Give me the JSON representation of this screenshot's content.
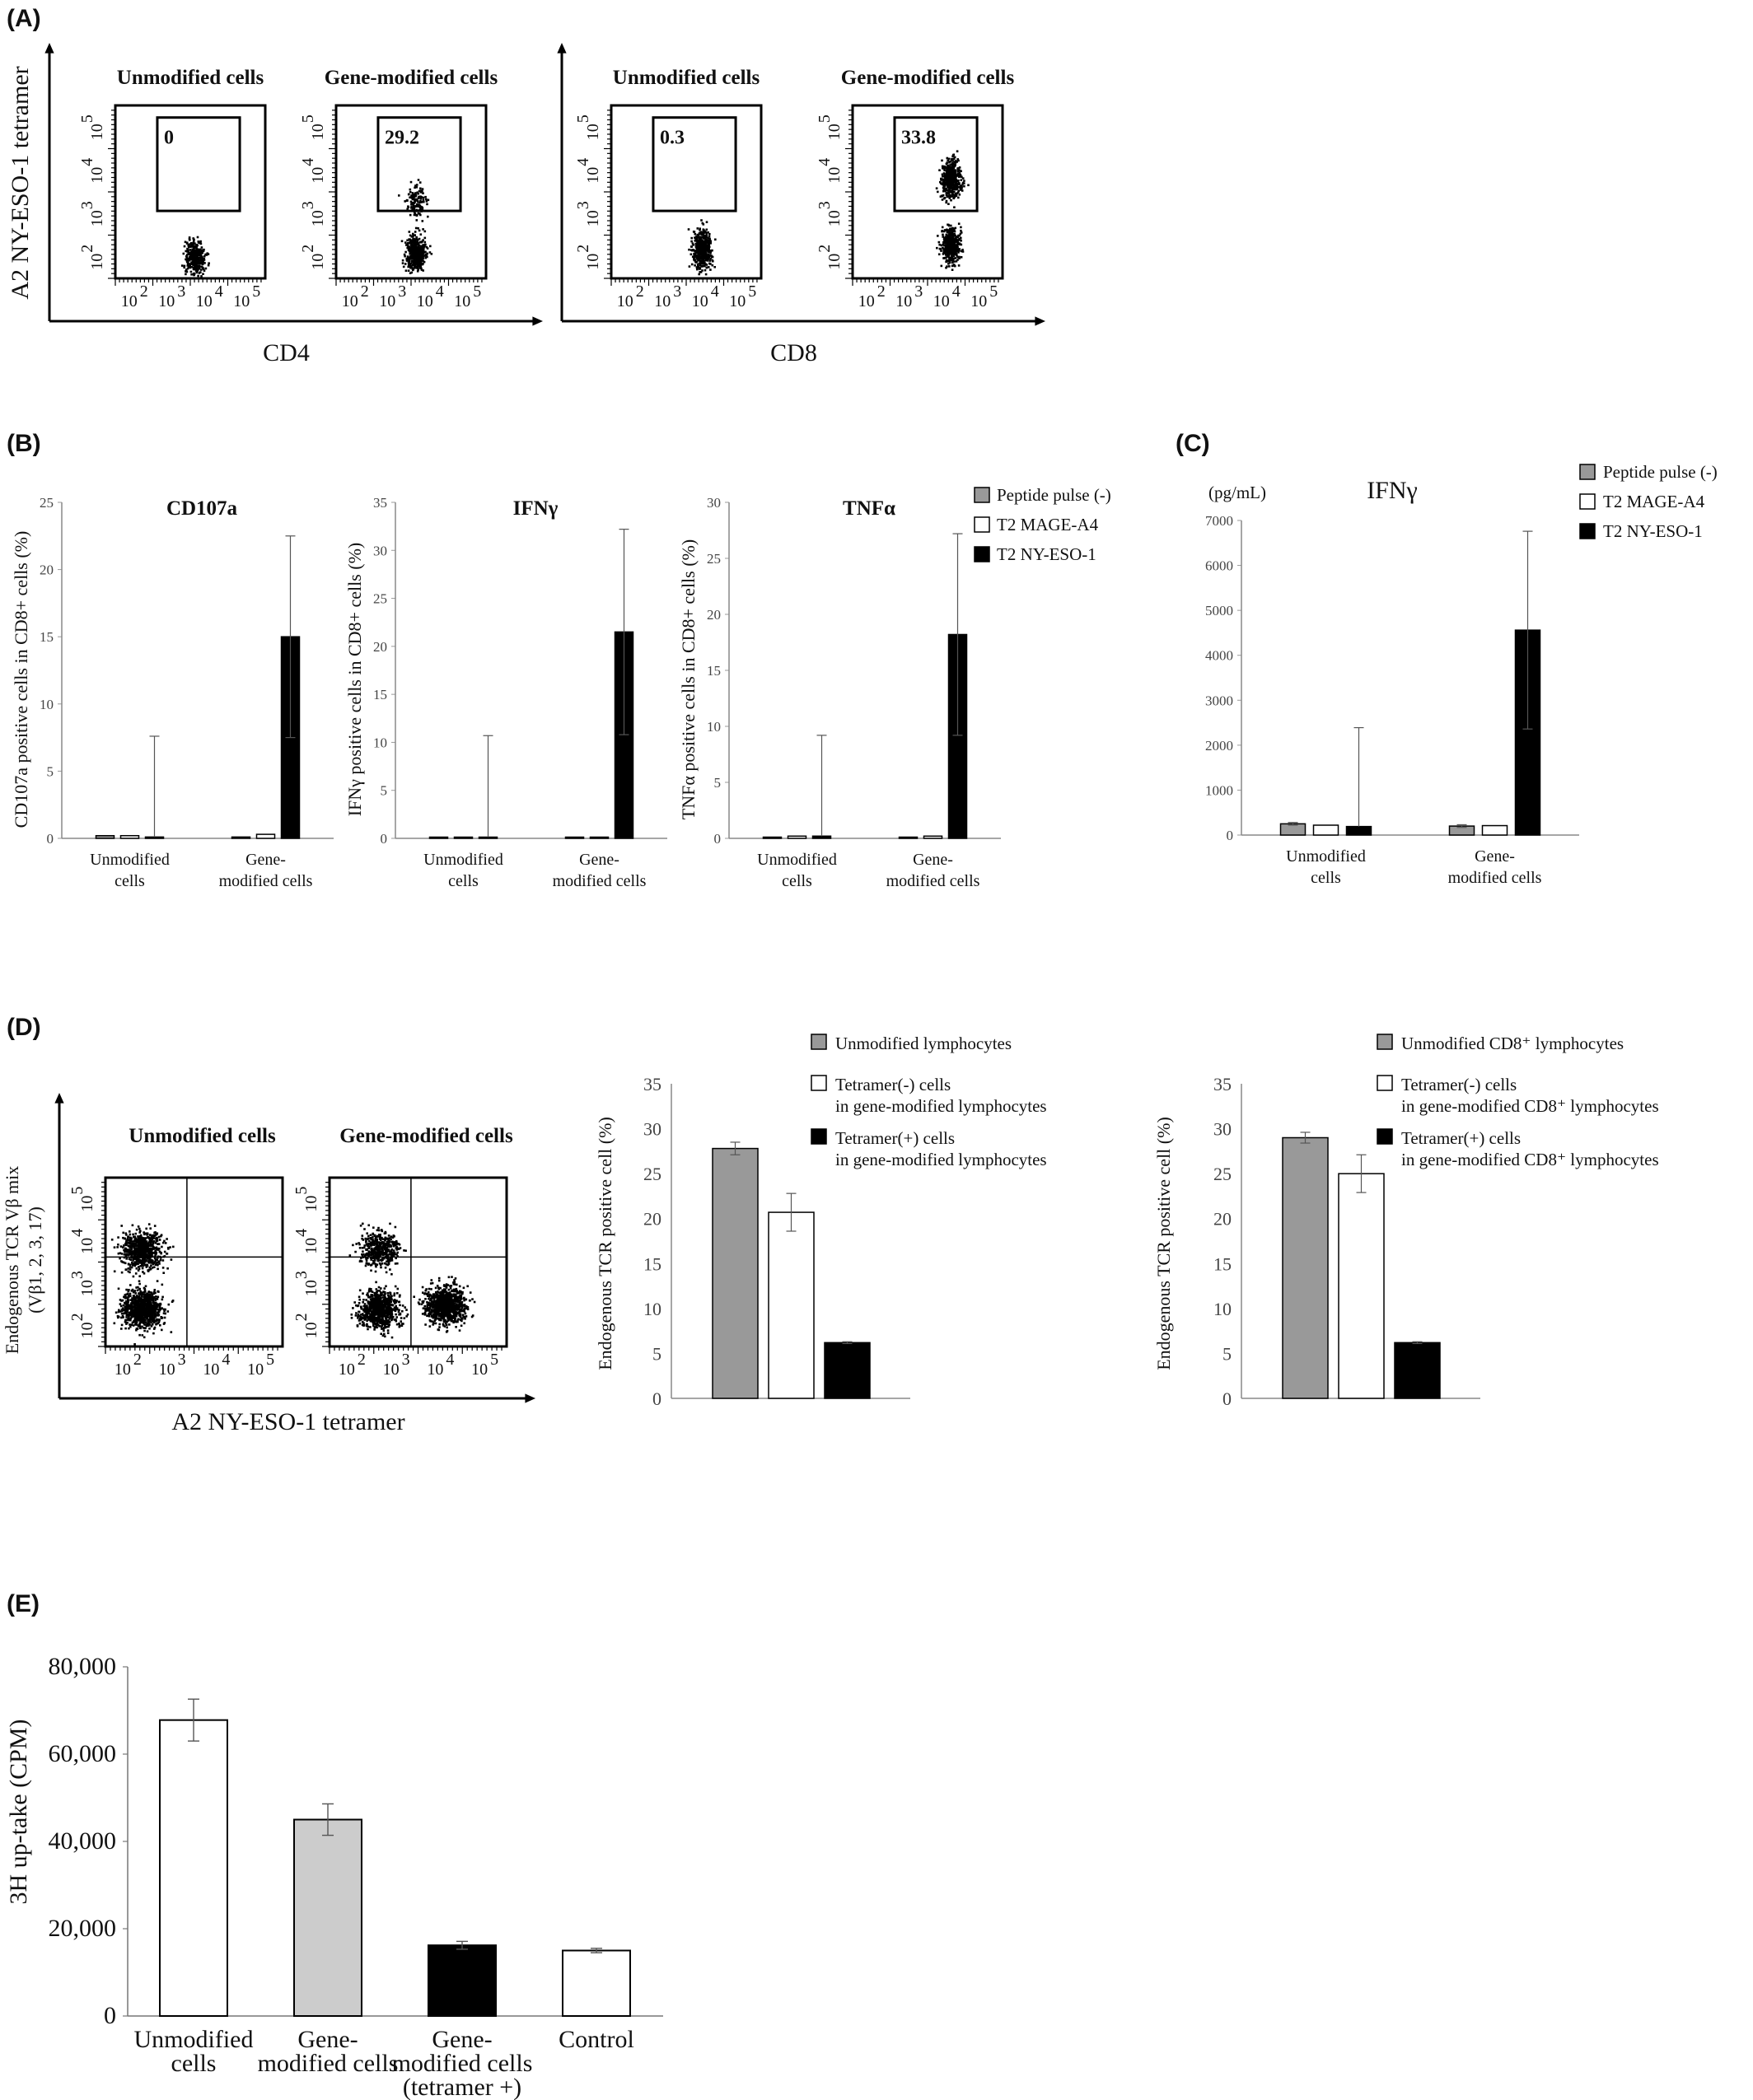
{
  "chart_data": [
    {
      "id": "A",
      "panel_label": "(A)",
      "type": "scatter",
      "ylabel": "A2 NY-ESO-1 tetramer",
      "groups": [
        {
          "xlabel": "CD4",
          "plots": [
            {
              "title": "Unmodified cells",
              "gate_value": "0",
              "clusters": [
                {
                  "x": 3.6,
                  "y": 2.0,
                  "n": 340
                }
              ]
            },
            {
              "title": "Gene-modified cells",
              "gate_value": "29.2",
              "clusters": [
                {
                  "x": 3.6,
                  "y": 3.3,
                  "n": 140
                },
                {
                  "x": 3.6,
                  "y": 2.1,
                  "n": 460
                }
              ]
            }
          ]
        },
        {
          "xlabel": "CD8",
          "plots": [
            {
              "title": "Unmodified cells",
              "gate_value": "0.3",
              "clusters": [
                {
                  "x": 3.9,
                  "y": 2.2,
                  "n": 520
                }
              ]
            },
            {
              "title": "Gene-modified cells",
              "gate_value": "33.8",
              "clusters": [
                {
                  "x": 4.1,
                  "y": 3.8,
                  "n": 480
                },
                {
                  "x": 4.1,
                  "y": 2.3,
                  "n": 420
                }
              ]
            }
          ]
        }
      ],
      "tick_base": "10",
      "tick_exponents": [
        "2",
        "3",
        "4",
        "5"
      ]
    },
    {
      "id": "B",
      "panel_label": "(B)",
      "type": "bar",
      "legend": [
        "Peptide pulse (-)",
        "T2 MAGE-A4",
        "T2 NY-ESO-1"
      ],
      "legend_colors": [
        "#999999",
        "#ffffff",
        "#000000"
      ],
      "categories": [
        [
          "Unmodified",
          "cells"
        ],
        [
          "Gene-",
          "modified cells"
        ]
      ],
      "subplots": [
        {
          "title": "CD107a",
          "ylabel": "CD107a positive cells in CD8+ cells (%)",
          "ylim": [
            0,
            25
          ],
          "yticks": [
            0,
            5,
            10,
            15,
            20,
            25
          ],
          "series": [
            {
              "values": [
                0.2,
                0.1
              ]
            },
            {
              "values": [
                0.2,
                0.3
              ]
            },
            {
              "values": [
                0.1,
                15
              ]
            }
          ],
          "errors": [
            [
              0,
              0
            ],
            [
              0,
              0
            ],
            [
              7.5,
              7.5
            ]
          ]
        },
        {
          "title": "IFNγ",
          "ylabel": "IFNγ positive cells in CD8+ cells (%)",
          "ylim": [
            0,
            35
          ],
          "yticks": [
            0,
            5,
            10,
            15,
            20,
            25,
            30,
            35
          ],
          "series": [
            {
              "values": [
                0.1,
                0.1
              ]
            },
            {
              "values": [
                0.1,
                0.1
              ]
            },
            {
              "values": [
                0.0,
                21.5
              ]
            }
          ],
          "errors": [
            [
              0,
              0
            ],
            [
              0,
              0
            ],
            [
              10.7,
              10.7
            ]
          ]
        },
        {
          "title": "TNFα",
          "ylabel": "TNFα positive cells in CD8+ cells (%)",
          "ylim": [
            0,
            30
          ],
          "yticks": [
            0,
            5,
            10,
            15,
            20,
            25,
            30
          ],
          "series": [
            {
              "values": [
                0.1,
                0.1
              ]
            },
            {
              "values": [
                0.2,
                0.2
              ]
            },
            {
              "values": [
                0.2,
                18.2
              ]
            }
          ],
          "errors": [
            [
              0,
              0
            ],
            [
              0,
              0
            ],
            [
              9.0,
              9.0
            ]
          ]
        }
      ]
    },
    {
      "id": "C",
      "panel_label": "(C)",
      "type": "bar",
      "title": "IFNγ",
      "unit": "(pg/mL)",
      "legend": [
        "Peptide pulse (-)",
        "T2 MAGE-A4",
        "T2 NY-ESO-1"
      ],
      "legend_colors": [
        "#999999",
        "#ffffff",
        "#000000"
      ],
      "categories": [
        [
          "Unmodified",
          "cells"
        ],
        [
          "Gene-",
          "modified cells"
        ]
      ],
      "ylim": [
        0,
        7000
      ],
      "yticks": [
        0,
        1000,
        2000,
        3000,
        4000,
        5000,
        6000,
        7000
      ],
      "series": [
        {
          "values": [
            250,
            200
          ]
        },
        {
          "values": [
            220,
            210
          ]
        },
        {
          "values": [
            190,
            4560
          ]
        }
      ],
      "errors": [
        [
          30,
          30
        ],
        [
          0,
          0
        ],
        [
          2200,
          2200
        ]
      ]
    },
    {
      "id": "D",
      "panel_label": "(D)",
      "type": "scatter",
      "ylabel_lines": [
        "Endogenous TCR Vβ mix",
        "(Vβ1, 2, 3, 17)"
      ],
      "xlabel": "A2 NY-ESO-1 tetramer",
      "plots": [
        {
          "title": "Unmodified cells",
          "clusters": [
            {
              "x": 2.3,
              "y": 3.8,
              "n": 700
            },
            {
              "x": 2.3,
              "y": 2.4,
              "n": 900
            }
          ]
        },
        {
          "title": "Gene-modified cells",
          "clusters": [
            {
              "x": 2.6,
              "y": 3.8,
              "n": 450
            },
            {
              "x": 2.6,
              "y": 2.4,
              "n": 800
            },
            {
              "x": 4.1,
              "y": 2.5,
              "n": 900
            }
          ]
        }
      ],
      "tick_base": "10",
      "tick_exponents": [
        "2",
        "3",
        "4",
        "5"
      ],
      "subcharts": [
        {
          "ylabel": "Endogenous TCR positive cell (%)",
          "ylim": [
            0,
            35
          ],
          "yticks": [
            0,
            5,
            10,
            15,
            20,
            25,
            30,
            35
          ],
          "legend": [
            [
              "Unmodified lymphocytes"
            ],
            [
              "Tetramer(-) cells",
              "in gene-modified lymphocytes"
            ],
            [
              "Tetramer(+) cells",
              "in gene-modified lymphocytes"
            ]
          ],
          "colors": [
            "#999999",
            "#ffffff",
            "#000000"
          ],
          "values": [
            27.8,
            20.7,
            6.2
          ],
          "errors": [
            0.7,
            2.1,
            0.1
          ]
        },
        {
          "ylabel": "Endogenous TCR positive cell (%)",
          "ylim": [
            0,
            35
          ],
          "yticks": [
            0,
            5,
            10,
            15,
            20,
            25,
            30,
            35
          ],
          "legend": [
            [
              "Unmodified CD8⁺ lymphocytes"
            ],
            [
              "Tetramer(-) cells",
              "in gene-modified CD8⁺ lymphocytes"
            ],
            [
              "Tetramer(+) cells",
              "in gene-modified CD8⁺ lymphocytes"
            ]
          ],
          "colors": [
            "#999999",
            "#ffffff",
            "#000000"
          ],
          "values": [
            29.0,
            25.0,
            6.2
          ],
          "errors": [
            0.6,
            2.1,
            0.1
          ]
        }
      ]
    },
    {
      "id": "E",
      "panel_label": "(E)",
      "type": "bar",
      "ylabel": "3H up-take (CPM)",
      "ylim": [
        0,
        80000
      ],
      "yticks": [
        0,
        20000,
        40000,
        60000,
        80000
      ],
      "ytick_labels": [
        "0",
        "20,000",
        "40,000",
        "60,000",
        "80,000"
      ],
      "categories": [
        [
          "Unmodified",
          "cells"
        ],
        [
          "Gene-",
          "modified cells"
        ],
        [
          "Gene-",
          "modified cells",
          "(tetramer +)"
        ],
        [
          "Control"
        ]
      ],
      "colors": [
        "#ffffff",
        "#cccccc",
        "#000000",
        "#ffffff"
      ],
      "values": [
        67800,
        45000,
        16200,
        15000
      ],
      "errors": [
        4800,
        3600,
        900,
        500
      ]
    }
  ]
}
